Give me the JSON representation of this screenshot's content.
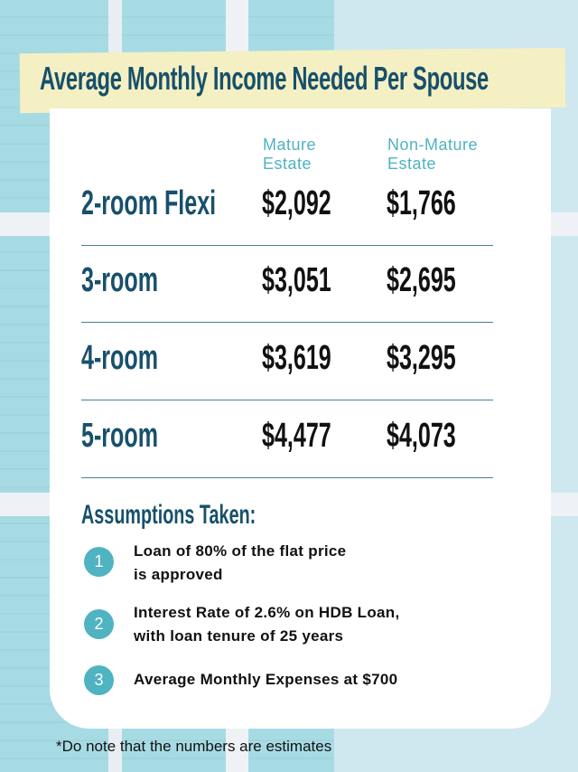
{
  "title": "Average Monthly Income Needed Per Spouse",
  "columns": [
    "Mature\nEstate",
    "Non-Mature\nEstate"
  ],
  "column_lines": [
    [
      "Mature",
      "Estate"
    ],
    [
      "Non-Mature",
      "Estate"
    ]
  ],
  "rows": [
    {
      "label": "2-room Flexi",
      "mature": "$2,092",
      "non_mature": "$1,766"
    },
    {
      "label": "3-room",
      "mature": "$3,051",
      "non_mature": "$2,695"
    },
    {
      "label": "4-room",
      "mature": "$3,619",
      "non_mature": "$3,295"
    },
    {
      "label": "5-room",
      "mature": "$4,477",
      "non_mature": "$4,073"
    }
  ],
  "assumptions": {
    "heading": "Assumptions Taken:",
    "items": [
      {
        "num": "1",
        "lines": [
          "Loan of 80% of the flat price",
          "is approved"
        ]
      },
      {
        "num": "2",
        "lines": [
          "Interest Rate of 2.6% on HDB Loan,",
          "with loan tenure of 25 years"
        ]
      },
      {
        "num": "3",
        "lines": [
          "Average Monthly Expenses at $700"
        ]
      }
    ]
  },
  "footnote": "*Do note that the numbers are estimates",
  "colors": {
    "heading": "#17506b",
    "accent": "#4fb3c1",
    "banner": "#f4f0c4"
  }
}
